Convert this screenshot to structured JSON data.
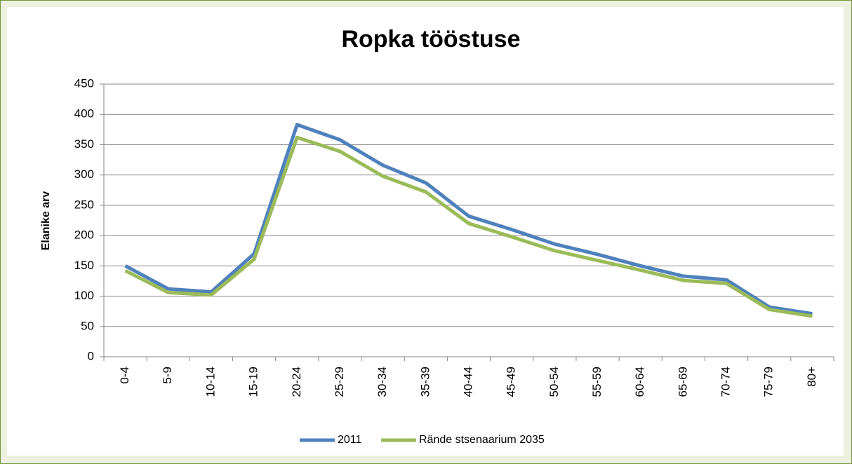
{
  "chart_data": {
    "type": "line",
    "title": "Ropka tööstuse",
    "y_label": "Elanike arv",
    "categories": [
      "0-4",
      "5-9",
      "10-14",
      "15-19",
      "20-24",
      "25-29",
      "30-34",
      "35-39",
      "40-44",
      "45-49",
      "50-54",
      "55-59",
      "60-64",
      "65-69",
      "70-74",
      "75-79",
      "80+"
    ],
    "series": [
      {
        "name": "2011",
        "color": "#4f81bd",
        "values": [
          150,
          112,
          107,
          170,
          383,
          358,
          316,
          287,
          232,
          210,
          186,
          169,
          150,
          133,
          127,
          82,
          71
        ]
      },
      {
        "name": "Rände stsenaarium 2035",
        "color": "#9bbb59",
        "values": [
          142,
          106,
          102,
          161,
          362,
          339,
          298,
          272,
          220,
          198,
          175,
          159,
          143,
          126,
          121,
          78,
          67
        ]
      }
    ],
    "ylim": [
      0,
      450
    ],
    "yticks": [
      0,
      50,
      100,
      150,
      200,
      250,
      300,
      350,
      400,
      450
    ],
    "grid": true,
    "legend": "bottom"
  }
}
